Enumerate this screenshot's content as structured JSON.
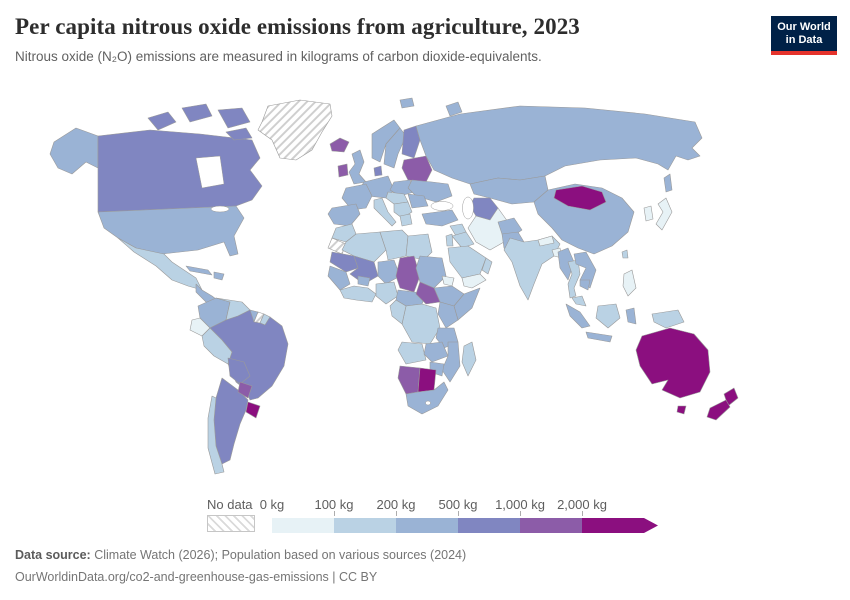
{
  "header": {
    "title": "Per capita nitrous oxide emissions from agriculture, 2023",
    "subtitle": "Nitrous oxide (N₂O) emissions are measured in kilograms of carbon dioxide-equivalents."
  },
  "logo": {
    "line1": "Our World",
    "line2": "in Data",
    "bg_color": "#002147",
    "accent_color": "#e5332c"
  },
  "legend": {
    "no_data_label": "No data",
    "tick_labels": [
      "0 kg",
      "100 kg",
      "200 kg",
      "500 kg",
      "1,000 kg",
      "2,000 kg"
    ]
  },
  "footer": {
    "source_label": "Data source:",
    "source_text": " Climate Watch (2026); Population based on various sources (2024)",
    "link_text": "OurWorldinData.org/co2-and-greenhouse-gas-emissions | CC BY"
  },
  "chart_data": {
    "type": "choropleth",
    "title": "Per capita nitrous oxide emissions from agriculture",
    "year": 2023,
    "unit": "kg of carbon dioxide-equivalents per person",
    "bins": [
      {
        "range": "0–100 kg",
        "color": "#e7f2f6"
      },
      {
        "range": "100–200 kg",
        "color": "#bad2e4"
      },
      {
        "range": "200–500 kg",
        "color": "#9ab3d5"
      },
      {
        "range": "500–1,000 kg",
        "color": "#8086c1"
      },
      {
        "range": "1,000–2,000 kg",
        "color": "#8c5ca8"
      },
      {
        "range": "2,000+ kg",
        "color": "#8b0f7f"
      }
    ],
    "no_data_color": "hatched",
    "regions": {
      "greenland": "no_data",
      "western_sahara": "no_data",
      "suriname": "no_data",
      "canada": 3,
      "usa": 2,
      "mexico": 1,
      "central_america": 2,
      "cuba": 2,
      "hispaniola": 2,
      "colombia": 2,
      "venezuela": 1,
      "guyana": 2,
      "french_guiana": 1,
      "ecuador": 0,
      "peru": 1,
      "brazil": 3,
      "bolivia": 3,
      "paraguay": 4,
      "uruguay": 5,
      "argentina": 3,
      "chile": 1,
      "iceland": 4,
      "ireland": 4,
      "uk": 2,
      "norway": 2,
      "sweden": 2,
      "finland": 3,
      "baltics_belarus": 4,
      "denmark": 3,
      "germany": 2,
      "poland": 2,
      "france": 2,
      "iberia": 2,
      "italy": 1,
      "central_europe": 1,
      "balkans": 1,
      "greece": 1,
      "romania": 2,
      "ukraine": 2,
      "russia": 2,
      "kazakhstan": 2,
      "turkmenistan_uzbekistan": 3,
      "turkey": 2,
      "syria": 1,
      "iraq": 1,
      "israel_jordan": 1,
      "iran": 0,
      "saudi_arabia": 1,
      "yemen": 0,
      "oman": 1,
      "afghanistan": 2,
      "pakistan": 2,
      "india": 1,
      "nepal": 0,
      "bangladesh": 0,
      "china": 2,
      "mongolia": 5,
      "japan": 0,
      "korea": 0,
      "taiwan": 1,
      "myanmar": 2,
      "thailand": 1,
      "laos_vietnam": 2,
      "cambodia": 2,
      "malaysia": 1,
      "indonesia": 2,
      "borneo_indonesia": 1,
      "philippines": 0,
      "new_guinea": 1,
      "morocco": 1,
      "algeria": 1,
      "libya": 1,
      "egypt": 1,
      "mauritania": 3,
      "mali": 3,
      "niger": 2,
      "chad": 4,
      "sudan": 2,
      "eritrea": 0,
      "ethiopia": 2,
      "somalia": 2,
      "senegal_guinea": 2,
      "guinea_coast": 1,
      "burkina_faso": 2,
      "nigeria": 1,
      "cameroon_car": 2,
      "south_sudan": 4,
      "drc": 1,
      "congo_gabon": 1,
      "uganda_kenya": 2,
      "tanzania": 2,
      "angola": 1,
      "zambia": 2,
      "mozambique": 2,
      "zimbabwe": 2,
      "namibia": 4,
      "botswana": 5,
      "south_africa": 2,
      "madagascar": 1,
      "australia": 5,
      "new_zealand": 5
    }
  }
}
